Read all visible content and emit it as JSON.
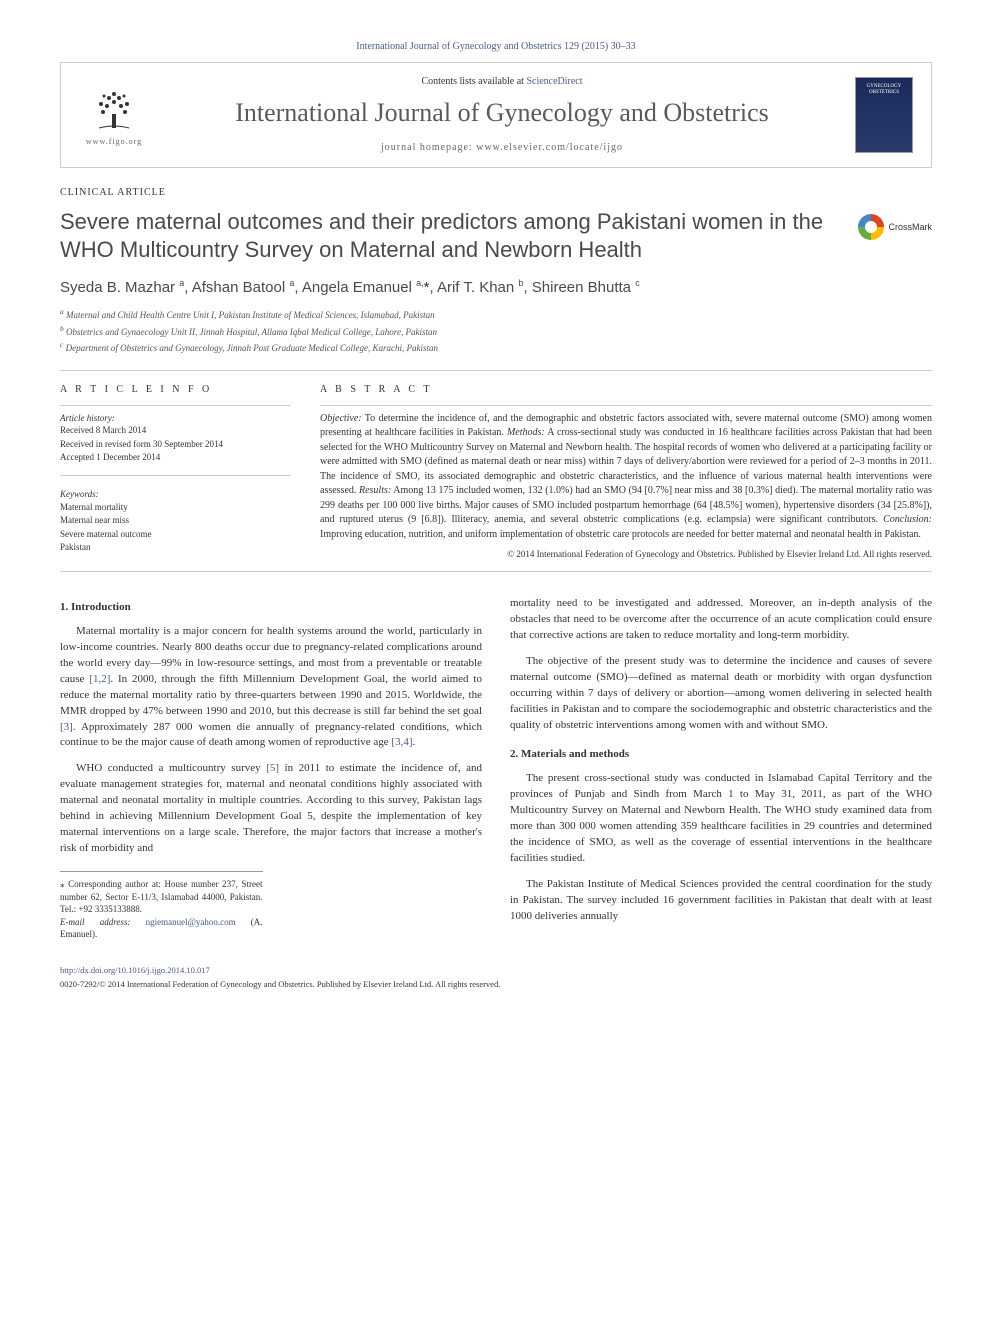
{
  "journal_ref": "International Journal of Gynecology and Obstetrics 129 (2015) 30–33",
  "header": {
    "contents_prefix": "Contents lists available at ",
    "contents_link": "ScienceDirect",
    "journal_title": "International Journal of Gynecology and Obstetrics",
    "homepage_label": "journal homepage: ",
    "homepage_url": "www.elsevier.com/locate/ijgo",
    "figo_label": "www.figo.org",
    "cover_line1": "GYNECOLOGY",
    "cover_line2": "OBSTETRICS"
  },
  "article_type": "CLINICAL ARTICLE",
  "title": "Severe maternal outcomes and their predictors among Pakistani women in the WHO Multicountry Survey on Maternal and Newborn Health",
  "crossmark": "CrossMark",
  "authors_html": "Syeda B. Mazhar <sup>a</sup>, Afshan Batool <sup>a</sup>, Angela Emanuel <sup>a,</sup><span class='star'>*</span>, Arif T. Khan <sup>b</sup>, Shireen Bhutta <sup>c</sup>",
  "affiliations": {
    "a": "Maternal and Child Health Centre Unit I, Pakistan Institute of Medical Sciences, Islamabad, Pakistan",
    "b": "Obstetrics and Gynaecology Unit II, Jinnah Hospital, Allama Iqbal Medical College, Lahore, Pakistan",
    "c": "Department of Obstetrics and Gynaecology, Jinnah Post Graduate Medical College, Karachi, Pakistan"
  },
  "info": {
    "heading": "A R T I C L E   I N F O",
    "history_label": "Article history:",
    "received": "Received 8 March 2014",
    "revised": "Received in revised form 30 September 2014",
    "accepted": "Accepted 1 December 2014",
    "keywords_label": "Keywords:",
    "keywords": [
      "Maternal mortality",
      "Maternal near miss",
      "Severe maternal outcome",
      "Pakistan"
    ]
  },
  "abstract": {
    "heading": "A B S T R A C T",
    "objective_label": "Objective:",
    "objective": " To determine the incidence of, and the demographic and obstetric factors associated with, severe maternal outcome (SMO) among women presenting at healthcare facilities in Pakistan. ",
    "methods_label": "Methods:",
    "methods": " A cross-sectional study was conducted in 16 healthcare facilities across Pakistan that had been selected for the WHO Multicountry Survey on Maternal and Newborn health. The hospital records of women who delivered at a participating facility or were admitted with SMO (defined as maternal death or near miss) within 7 days of delivery/abortion were reviewed for a period of 2–3 months in 2011. The incidence of SMO, its associated demographic and obstetric characteristics, and the influence of various maternal health interventions were assessed. ",
    "results_label": "Results:",
    "results": " Among 13 175 included women, 132 (1.0%) had an SMO (94 [0.7%] near miss and 38 [0.3%] died). The maternal mortality ratio was 299 deaths per 100 000 live births. Major causes of SMO included postpartum hemorrhage (64 [48.5%] women), hypertensive disorders (34 [25.8%]), and ruptured uterus (9 [6.8]). Illiteracy, anemia, and several obstetric complications (e.g. eclampsia) were significant contributors. ",
    "conclusion_label": "Conclusion:",
    "conclusion": " Improving education, nutrition, and uniform implementation of obstetric care protocols are needed for better maternal and neonatal health in Pakistan.",
    "copyright": "© 2014 International Federation of Gynecology and Obstetrics. Published by Elsevier Ireland Ltd. All rights reserved."
  },
  "sections": {
    "intro_heading": "1. Introduction",
    "intro_p1a": "Maternal mortality is a major concern for health systems around the world, particularly in low-income countries. Nearly 800 deaths occur due to pregnancy-related complications around the world every day—99% in low-resource settings, and most from a preventable or treatable cause ",
    "intro_ref1": "[1,2]",
    "intro_p1b": ". In 2000, through the fifth Millennium Development Goal, the world aimed to reduce the maternal mortality ratio by three-quarters between 1990 and 2015. Worldwide, the MMR dropped by 47% between 1990 and 2010, but this decrease is still far behind the set goal ",
    "intro_ref2": "[3]",
    "intro_p1c": ". Approximately 287 000 women die annually of pregnancy-related conditions, which continue to be the major cause of death among women of reproductive age ",
    "intro_ref3": "[3,4]",
    "intro_p1d": ".",
    "intro_p2a": "WHO conducted a multicountry survey ",
    "intro_ref4": "[5]",
    "intro_p2b": " in 2011 to estimate the incidence of, and evaluate management strategies for, maternal and neonatal conditions highly associated with maternal and neonatal mortality in multiple countries. According to this survey, Pakistan lags behind in achieving Millennium Development Goal 5, despite the implementation of key maternal interventions on a large scale. Therefore, the major factors that increase a mother's risk of morbidity and",
    "intro_p3": "mortality need to be investigated and addressed. Moreover, an in-depth analysis of the obstacles that need to be overcome after the occurrence of an acute complication could ensure that corrective actions are taken to reduce mortality and long-term morbidity.",
    "intro_p4": "The objective of the present study was to determine the incidence and causes of severe maternal outcome (SMO)—defined as maternal death or morbidity with organ dysfunction occurring within 7 days of delivery or abortion—among women delivering in selected health facilities in Pakistan and to compare the sociodemographic and obstetric characteristics and the quality of obstetric interventions among women with and without SMO.",
    "methods_heading": "2. Materials and methods",
    "methods_p1": "The present cross-sectional study was conducted in Islamabad Capital Territory and the provinces of Punjab and Sindh from March 1 to May 31, 2011, as part of the WHO Multicountry Survey on Maternal and Newborn Health. The WHO study examined data from more than 300 000 women attending 359 healthcare facilities in 29 countries and determined the incidence of SMO, as well as the coverage of essential interventions in the healthcare facilities studied.",
    "methods_p2": "The Pakistan Institute of Medical Sciences provided the central coordination for the study in Pakistan. The survey included 16 government facilities in Pakistan that dealt with at least 1000 deliveries annually"
  },
  "footnotes": {
    "corr_label": "⁎ Corresponding author at: House number 237, Street number 62, Sector E-11/3, Islamabad 44000, Pakistan. Tel.: +92 3335133888.",
    "email_label": "E-mail address:",
    "email": "ngiemanuel@yahoo.com",
    "email_suffix": " (A. Emanuel)."
  },
  "footer": {
    "doi": "http://dx.doi.org/10.1016/j.ijgo.2014.10.017",
    "issn_line": "0020-7292/© 2014 International Federation of Gynecology and Obstetrics. Published by Elsevier Ireland Ltd. All rights reserved."
  },
  "colors": {
    "link": "#4a5b8a",
    "text": "#333333",
    "title_gray": "#5a5a5a",
    "border": "#cccccc",
    "cover_bg": "#1a2a5a"
  }
}
